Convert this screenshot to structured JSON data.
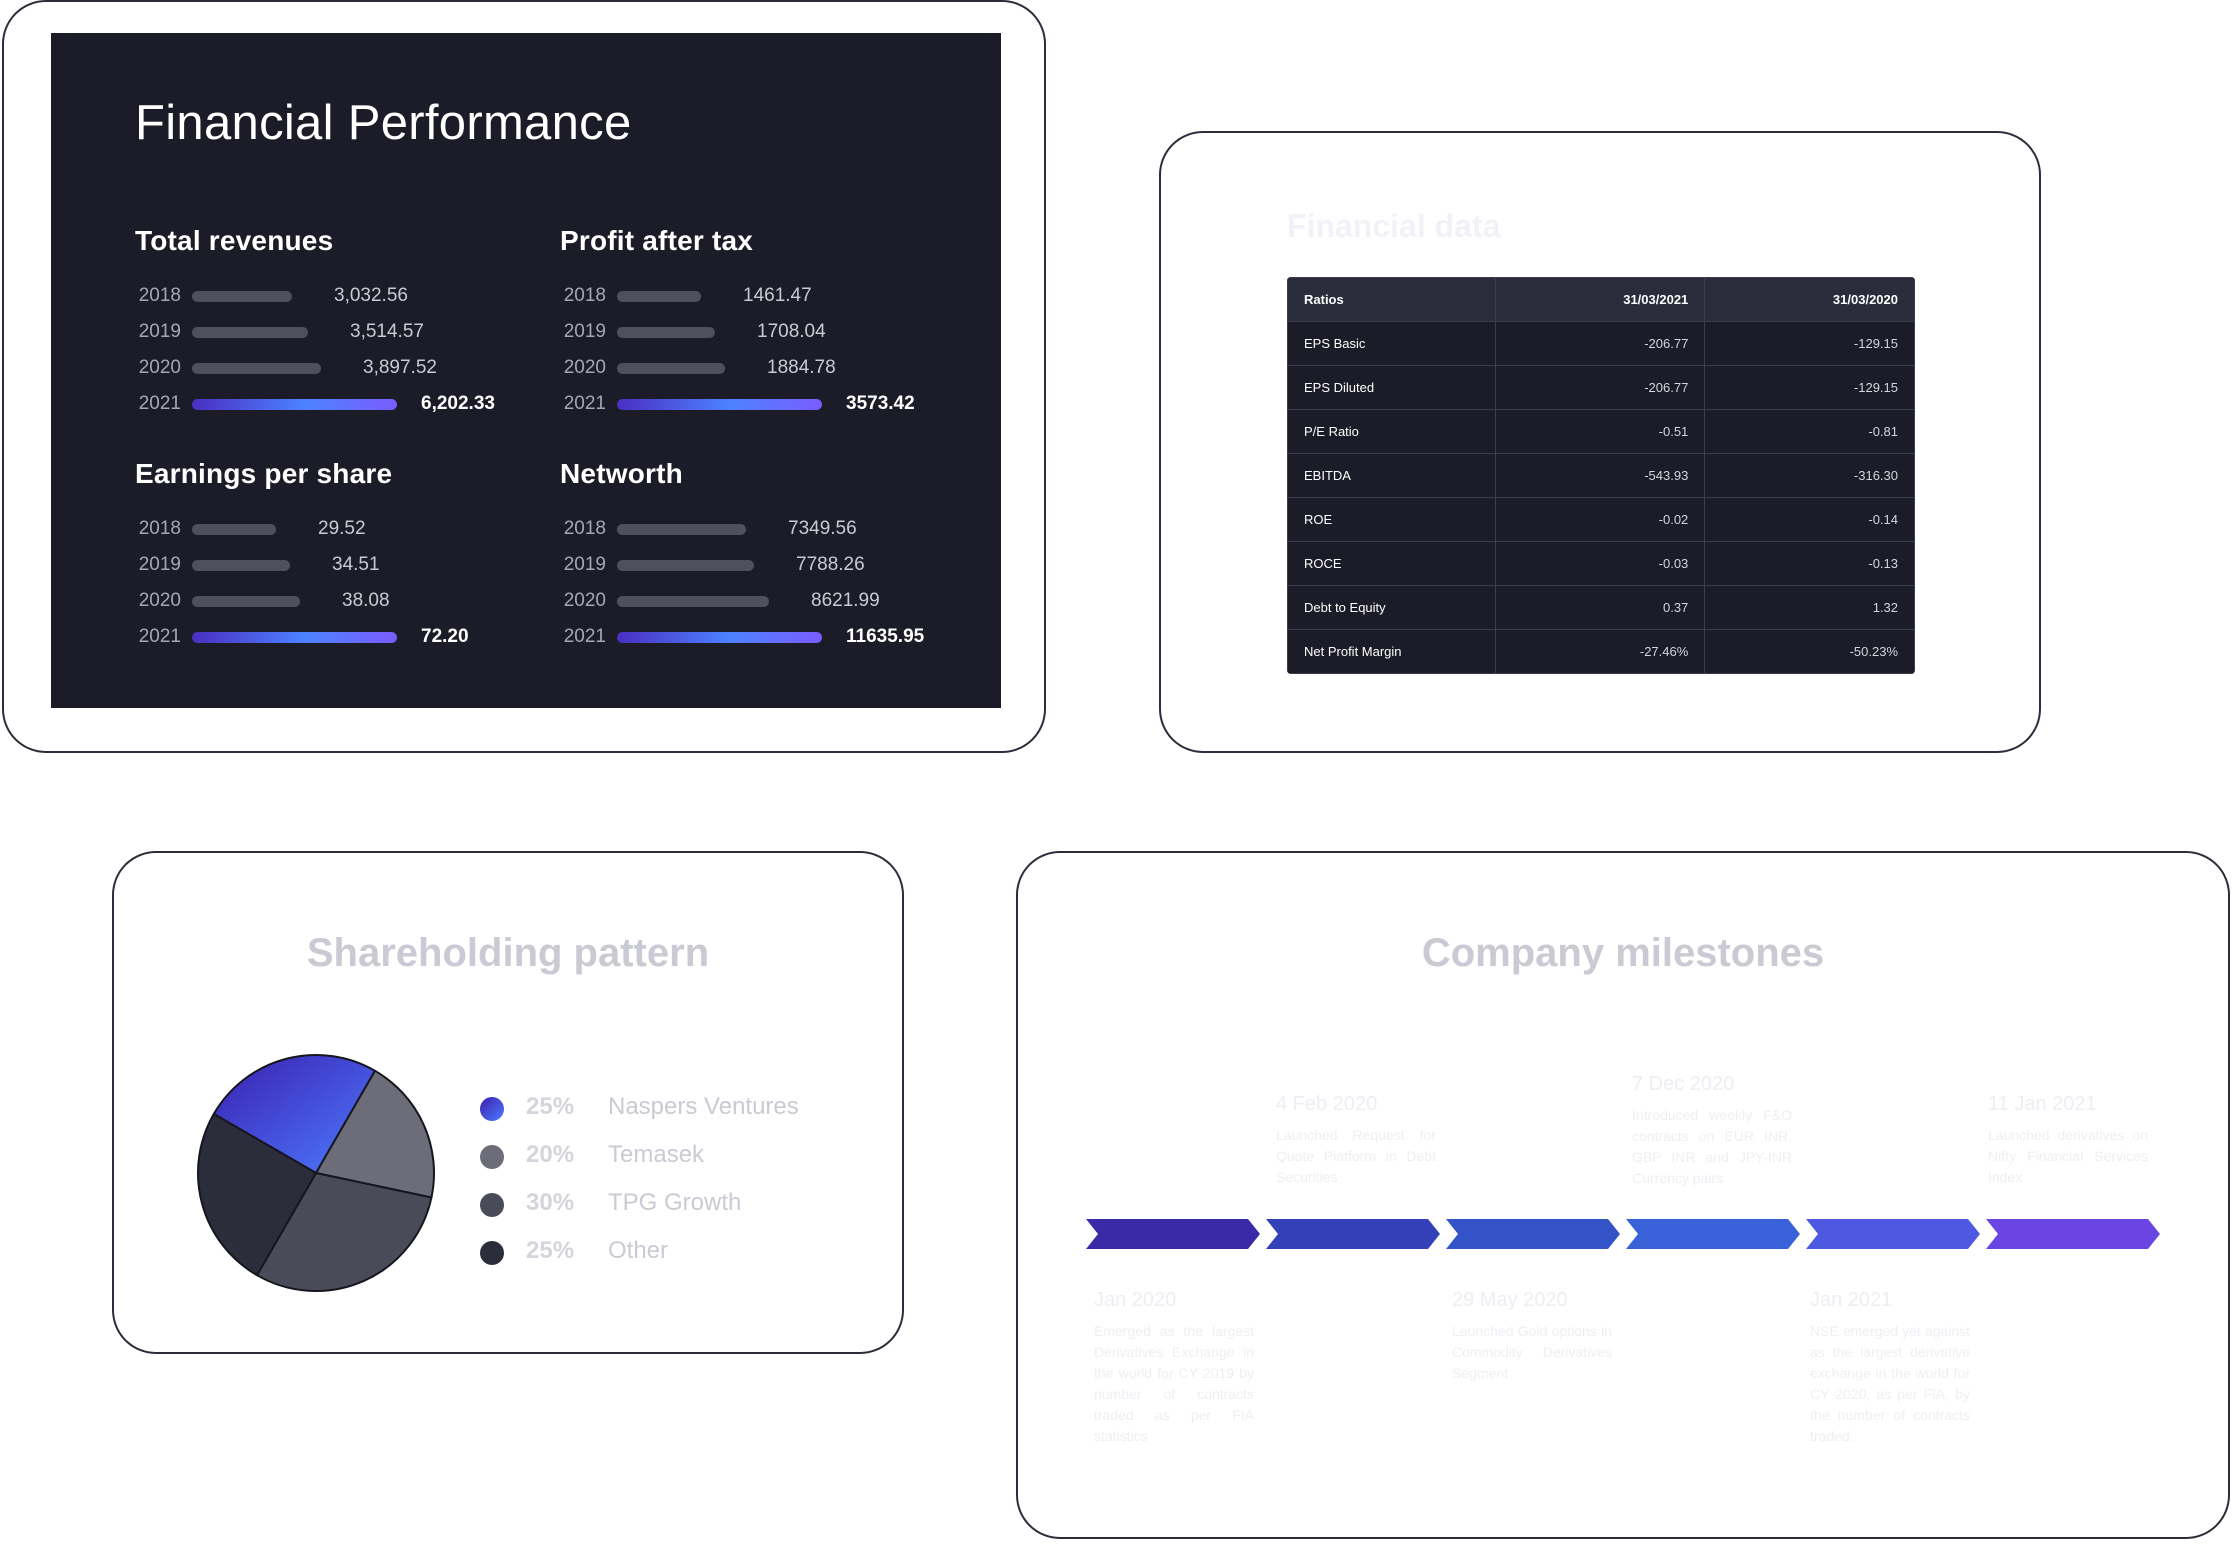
{
  "performance": {
    "title": "Financial Performance",
    "metrics": [
      {
        "title": "Total revenues",
        "rows": [
          {
            "year": "2018",
            "value": "3,032.56",
            "amount": 3032.56
          },
          {
            "year": "2019",
            "value": "3,514.57",
            "amount": 3514.57
          },
          {
            "year": "2020",
            "value": "3,897.52",
            "amount": 3897.52
          },
          {
            "year": "2021",
            "value": "6,202.33",
            "amount": 6202.33
          }
        ]
      },
      {
        "title": "Profit after tax",
        "rows": [
          {
            "year": "2018",
            "value": "1461.47",
            "amount": 1461.47
          },
          {
            "year": "2019",
            "value": "1708.04",
            "amount": 1708.04
          },
          {
            "year": "2020",
            "value": "1884.78",
            "amount": 1884.78
          },
          {
            "year": "2021",
            "value": "3573.42",
            "amount": 3573.42
          }
        ]
      },
      {
        "title": "Earnings per share",
        "rows": [
          {
            "year": "2018",
            "value": "29.52",
            "amount": 29.52
          },
          {
            "year": "2019",
            "value": "34.51",
            "amount": 34.51
          },
          {
            "year": "2020",
            "value": "38.08",
            "amount": 38.08
          },
          {
            "year": "2021",
            "value": "72.20",
            "amount": 72.2
          }
        ]
      },
      {
        "title": "Networth",
        "rows": [
          {
            "year": "2018",
            "value": "7349.56",
            "amount": 7349.56
          },
          {
            "year": "2019",
            "value": "7788.26",
            "amount": 7788.26
          },
          {
            "year": "2020",
            "value": "8621.99",
            "amount": 8621.99
          },
          {
            "year": "2021",
            "value": "11635.95",
            "amount": 11635.95
          }
        ]
      }
    ],
    "colors": {
      "panel": "#1b1c27",
      "bar": "#4e505d",
      "highlight_start": "#4a2fc2",
      "highlight_end": "#7a5cff"
    }
  },
  "financial_data": {
    "title": "Financial data",
    "headers": [
      "Ratios",
      "31/03/2021",
      "31/03/2020"
    ],
    "rows": [
      [
        "EPS Basic",
        "-206.77",
        "-129.15"
      ],
      [
        "EPS Diluted",
        "-206.77",
        "-129.15"
      ],
      [
        "P/E Ratio",
        "-0.51",
        "-0.81"
      ],
      [
        "EBITDA",
        "-543.93",
        "-316.30"
      ],
      [
        "ROE",
        "-0.02",
        "-0.14"
      ],
      [
        "ROCE",
        "-0.03",
        "-0.13"
      ],
      [
        "Debt to Equity",
        "0.37",
        "1.32"
      ],
      [
        "Net Profit Margin",
        "-27.46%",
        "-50.23%"
      ]
    ]
  },
  "shareholding": {
    "title": "Shareholding pattern",
    "items": [
      {
        "pct": "25%",
        "name": "Naspers Ventures",
        "color": "#4a5cff"
      },
      {
        "pct": "20%",
        "name": "Temasek",
        "color": "#6c6d79"
      },
      {
        "pct": "30%",
        "name": "TPG Growth",
        "color": "#4a4b58"
      },
      {
        "pct": "25%",
        "name": "Other",
        "color": "#2c2d3a"
      }
    ]
  },
  "milestones": {
    "title": "Company milestones",
    "items": [
      {
        "date": "Jan 2020",
        "text": "Emerged as the largest Derivatives Exchange in the world for CY 2019 by number of contracts traded as per FIA statistics",
        "side": "bottom"
      },
      {
        "date": "4 Feb 2020",
        "text": "Launched Request for Quote Platform in Debt Securities",
        "side": "top"
      },
      {
        "date": "29 May 2020",
        "text": "Launched Gold options in Commodity Derivatives Segment",
        "side": "bottom"
      },
      {
        "date": "7 Dec 2020",
        "text": "Introduced weekly F&O contracts on EUR INR, GBP INR and JPY-INR Currency pairs",
        "side": "top"
      },
      {
        "date": "Jan 2021",
        "text": "NSE emerged yet against as the largest derivative exchange in the world for CY 2020, as per FIA, by the number of contracts traded.",
        "side": "bottom"
      },
      {
        "date": "11 Jan 2021",
        "text": "Launched derivatives on Nifty Financial Services Index",
        "side": "top"
      }
    ],
    "chevron_colors": [
      "#3a2aa8",
      "#3340b8",
      "#3553c8",
      "#3a62d8",
      "#4e58e0",
      "#6a45e4"
    ]
  }
}
